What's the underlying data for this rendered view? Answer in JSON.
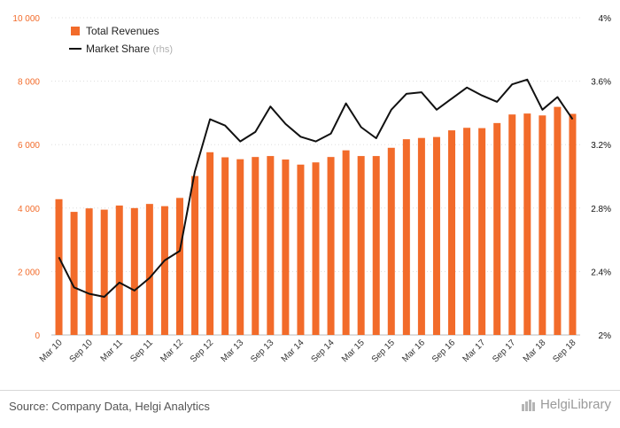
{
  "chart_data": {
    "type": "bar+line",
    "categories": [
      "Mar 10",
      "Jun 10",
      "Sep 10",
      "Dec 10",
      "Mar 11",
      "Jun 11",
      "Sep 11",
      "Dec 11",
      "Mar 12",
      "Jun 12",
      "Sep 12",
      "Dec 12",
      "Mar 13",
      "Jun 13",
      "Sep 13",
      "Dec 13",
      "Mar 14",
      "Jun 14",
      "Sep 14",
      "Dec 14",
      "Mar 15",
      "Jun 15",
      "Sep 15",
      "Dec 15",
      "Mar 16",
      "Jun 16",
      "Sep 16",
      "Dec 16",
      "Mar 17",
      "Jun 17",
      "Sep 17",
      "Dec 17",
      "Mar 18",
      "Jun 18",
      "Sep 18"
    ],
    "xtick_labels": [
      "Mar 10",
      "Sep 10",
      "Mar 11",
      "Sep 11",
      "Mar 12",
      "Sep 12",
      "Mar 13",
      "Sep 13",
      "Mar 14",
      "Sep 14",
      "Mar 15",
      "Sep 15",
      "Mar 16",
      "Sep 16",
      "Mar 17",
      "Sep 17",
      "Mar 18",
      "Sep 18"
    ],
    "series": [
      {
        "name": "Total Revenues",
        "kind": "bar",
        "axis": "left",
        "color": "#f26b2a",
        "values": [
          4280,
          3880,
          3990,
          3950,
          4080,
          4000,
          4130,
          4060,
          4320,
          5010,
          5760,
          5600,
          5540,
          5610,
          5640,
          5530,
          5370,
          5440,
          5610,
          5820,
          5640,
          5640,
          5900,
          6170,
          6210,
          6240,
          6450,
          6530,
          6520,
          6680,
          6950,
          6980,
          6920,
          7190,
          6970
        ]
      },
      {
        "name": "Market Share",
        "legend_note": "(rhs)",
        "kind": "line",
        "axis": "right",
        "color": "#111111",
        "values": [
          2.49,
          2.3,
          2.26,
          2.24,
          2.33,
          2.28,
          2.36,
          2.47,
          2.53,
          3.03,
          3.36,
          3.32,
          3.22,
          3.28,
          3.44,
          3.33,
          3.25,
          3.22,
          3.27,
          3.46,
          3.31,
          3.24,
          3.42,
          3.52,
          3.53,
          3.42,
          3.49,
          3.56,
          3.51,
          3.47,
          3.58,
          3.61,
          3.42,
          3.5,
          3.36
        ]
      }
    ],
    "y_left": {
      "ylim": [
        0,
        10000
      ],
      "ticks": [
        "0",
        "2 000",
        "4 000",
        "6 000",
        "8 000",
        "10 000"
      ],
      "tick_values": [
        0,
        2000,
        4000,
        6000,
        8000,
        10000
      ],
      "tick_color": "#f26b2a"
    },
    "y_right": {
      "ylim": [
        2,
        4
      ],
      "ticks": [
        "2%",
        "2.4%",
        "2.8%",
        "3.2%",
        "3.6%",
        "4%"
      ],
      "tick_values": [
        2,
        2.4,
        2.8,
        3.2,
        3.6,
        4
      ]
    },
    "grid": true,
    "legend_position": "top-left"
  },
  "footer": {
    "source": "Source: Company Data, Helgi Analytics",
    "brand": "HelgiLibrary"
  }
}
